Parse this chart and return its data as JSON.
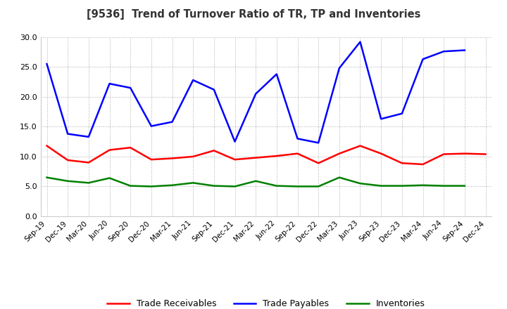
{
  "title": "[9536]  Trend of Turnover Ratio of TR, TP and Inventories",
  "x_labels": [
    "Sep-19",
    "Dec-19",
    "Mar-20",
    "Jun-20",
    "Sep-20",
    "Dec-20",
    "Mar-21",
    "Jun-21",
    "Sep-21",
    "Dec-21",
    "Mar-22",
    "Jun-22",
    "Sep-22",
    "Dec-22",
    "Mar-23",
    "Jun-23",
    "Sep-23",
    "Dec-23",
    "Mar-24",
    "Jun-24",
    "Sep-24",
    "Dec-24"
  ],
  "trade_receivables": [
    11.8,
    9.4,
    9.0,
    11.1,
    11.5,
    9.5,
    9.7,
    10.0,
    11.0,
    9.5,
    9.8,
    10.1,
    10.5,
    8.9,
    10.5,
    11.8,
    10.5,
    8.9,
    8.7,
    10.4,
    10.5,
    10.4
  ],
  "trade_payables": [
    25.5,
    13.8,
    13.3,
    22.2,
    21.5,
    15.1,
    15.8,
    22.8,
    21.2,
    12.5,
    20.5,
    23.8,
    13.0,
    12.3,
    24.8,
    29.2,
    16.3,
    17.2,
    26.3,
    27.6,
    27.8,
    null
  ],
  "inventories": [
    6.5,
    5.9,
    5.6,
    6.4,
    5.1,
    5.0,
    5.2,
    5.6,
    5.1,
    5.0,
    5.9,
    5.1,
    5.0,
    5.0,
    6.5,
    5.5,
    5.1,
    5.1,
    5.2,
    5.1,
    5.1,
    null
  ],
  "ylim": [
    0.0,
    30.0
  ],
  "yticks": [
    0.0,
    5.0,
    10.0,
    15.0,
    20.0,
    25.0,
    30.0
  ],
  "color_tr": "#ff0000",
  "color_tp": "#0000ff",
  "color_inv": "#008000",
  "bg_color": "#ffffff",
  "grid_color": "#aaaaaa",
  "linewidth": 1.8
}
